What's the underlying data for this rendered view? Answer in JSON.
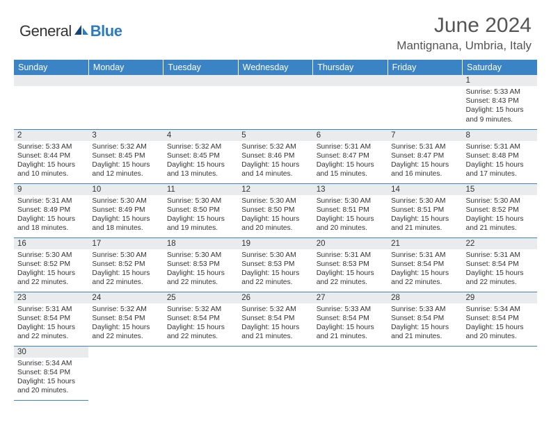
{
  "logo": {
    "name1": "General",
    "name2": "Blue"
  },
  "title": "June 2024",
  "location": "Mantignana, Umbria, Italy",
  "colors": {
    "header_bg": "#3a83c4",
    "header_text": "#ffffff",
    "daynum_bg": "#e9ebec",
    "cell_border": "#3a83c4",
    "text": "#333333",
    "logo_blue": "#2b7bbf"
  },
  "dayHeaders": [
    "Sunday",
    "Monday",
    "Tuesday",
    "Wednesday",
    "Thursday",
    "Friday",
    "Saturday"
  ],
  "weeks": [
    [
      null,
      null,
      null,
      null,
      null,
      null,
      {
        "n": "1",
        "sr": "5:33 AM",
        "ss": "8:43 PM",
        "dl": "15 hours and 9 minutes."
      }
    ],
    [
      {
        "n": "2",
        "sr": "5:33 AM",
        "ss": "8:44 PM",
        "dl": "15 hours and 10 minutes."
      },
      {
        "n": "3",
        "sr": "5:32 AM",
        "ss": "8:45 PM",
        "dl": "15 hours and 12 minutes."
      },
      {
        "n": "4",
        "sr": "5:32 AM",
        "ss": "8:45 PM",
        "dl": "15 hours and 13 minutes."
      },
      {
        "n": "5",
        "sr": "5:32 AM",
        "ss": "8:46 PM",
        "dl": "15 hours and 14 minutes."
      },
      {
        "n": "6",
        "sr": "5:31 AM",
        "ss": "8:47 PM",
        "dl": "15 hours and 15 minutes."
      },
      {
        "n": "7",
        "sr": "5:31 AM",
        "ss": "8:47 PM",
        "dl": "15 hours and 16 minutes."
      },
      {
        "n": "8",
        "sr": "5:31 AM",
        "ss": "8:48 PM",
        "dl": "15 hours and 17 minutes."
      }
    ],
    [
      {
        "n": "9",
        "sr": "5:31 AM",
        "ss": "8:49 PM",
        "dl": "15 hours and 18 minutes."
      },
      {
        "n": "10",
        "sr": "5:30 AM",
        "ss": "8:49 PM",
        "dl": "15 hours and 18 minutes."
      },
      {
        "n": "11",
        "sr": "5:30 AM",
        "ss": "8:50 PM",
        "dl": "15 hours and 19 minutes."
      },
      {
        "n": "12",
        "sr": "5:30 AM",
        "ss": "8:50 PM",
        "dl": "15 hours and 20 minutes."
      },
      {
        "n": "13",
        "sr": "5:30 AM",
        "ss": "8:51 PM",
        "dl": "15 hours and 20 minutes."
      },
      {
        "n": "14",
        "sr": "5:30 AM",
        "ss": "8:51 PM",
        "dl": "15 hours and 21 minutes."
      },
      {
        "n": "15",
        "sr": "5:30 AM",
        "ss": "8:52 PM",
        "dl": "15 hours and 21 minutes."
      }
    ],
    [
      {
        "n": "16",
        "sr": "5:30 AM",
        "ss": "8:52 PM",
        "dl": "15 hours and 22 minutes."
      },
      {
        "n": "17",
        "sr": "5:30 AM",
        "ss": "8:52 PM",
        "dl": "15 hours and 22 minutes."
      },
      {
        "n": "18",
        "sr": "5:30 AM",
        "ss": "8:53 PM",
        "dl": "15 hours and 22 minutes."
      },
      {
        "n": "19",
        "sr": "5:30 AM",
        "ss": "8:53 PM",
        "dl": "15 hours and 22 minutes."
      },
      {
        "n": "20",
        "sr": "5:31 AM",
        "ss": "8:53 PM",
        "dl": "15 hours and 22 minutes."
      },
      {
        "n": "21",
        "sr": "5:31 AM",
        "ss": "8:54 PM",
        "dl": "15 hours and 22 minutes."
      },
      {
        "n": "22",
        "sr": "5:31 AM",
        "ss": "8:54 PM",
        "dl": "15 hours and 22 minutes."
      }
    ],
    [
      {
        "n": "23",
        "sr": "5:31 AM",
        "ss": "8:54 PM",
        "dl": "15 hours and 22 minutes."
      },
      {
        "n": "24",
        "sr": "5:32 AM",
        "ss": "8:54 PM",
        "dl": "15 hours and 22 minutes."
      },
      {
        "n": "25",
        "sr": "5:32 AM",
        "ss": "8:54 PM",
        "dl": "15 hours and 22 minutes."
      },
      {
        "n": "26",
        "sr": "5:32 AM",
        "ss": "8:54 PM",
        "dl": "15 hours and 21 minutes."
      },
      {
        "n": "27",
        "sr": "5:33 AM",
        "ss": "8:54 PM",
        "dl": "15 hours and 21 minutes."
      },
      {
        "n": "28",
        "sr": "5:33 AM",
        "ss": "8:54 PM",
        "dl": "15 hours and 21 minutes."
      },
      {
        "n": "29",
        "sr": "5:34 AM",
        "ss": "8:54 PM",
        "dl": "15 hours and 20 minutes."
      }
    ],
    [
      {
        "n": "30",
        "sr": "5:34 AM",
        "ss": "8:54 PM",
        "dl": "15 hours and 20 minutes."
      },
      null,
      null,
      null,
      null,
      null,
      null
    ]
  ],
  "labels": {
    "sunrise": "Sunrise: ",
    "sunset": "Sunset: ",
    "daylight": "Daylight: "
  }
}
